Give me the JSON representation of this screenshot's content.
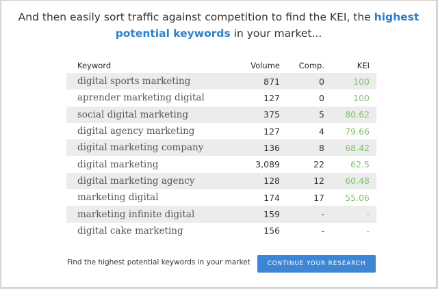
{
  "headline": {
    "before": "And then easily sort traffic against competition to find the KEI, the ",
    "highlight": "highest potential keywords",
    "after": " in your market..."
  },
  "table": {
    "headers": {
      "keyword": "Keyword",
      "volume": "Volume",
      "comp": "Comp.",
      "kei": "KEI"
    },
    "rows": [
      {
        "keyword": "digital sports marketing",
        "volume": "871",
        "comp": "0",
        "kei": "100"
      },
      {
        "keyword": "aprender marketing digital",
        "volume": "127",
        "comp": "0",
        "kei": "100"
      },
      {
        "keyword": "social digital marketing",
        "volume": "375",
        "comp": "5",
        "kei": "80.62"
      },
      {
        "keyword": "digital agency marketing",
        "volume": "127",
        "comp": "4",
        "kei": "79.66"
      },
      {
        "keyword": "digital marketing company",
        "volume": "136",
        "comp": "8",
        "kei": "68.42"
      },
      {
        "keyword": "digital marketing",
        "volume": "3,089",
        "comp": "22",
        "kei": "62.5"
      },
      {
        "keyword": "digital marketing agency",
        "volume": "128",
        "comp": "12",
        "kei": "60.48"
      },
      {
        "keyword": "marketing digital",
        "volume": "174",
        "comp": "17",
        "kei": "55.06"
      },
      {
        "keyword": "marketing infinite digital",
        "volume": "159",
        "comp": "-",
        "kei": "-"
      },
      {
        "keyword": "digital cake marketing",
        "volume": "156",
        "comp": "-",
        "kei": "-"
      }
    ]
  },
  "footer": {
    "text": "Find the highest potential keywords in your market",
    "button_label": "CONTINUE YOUR RESEARCH"
  },
  "colors": {
    "accent": "#2f7fc4",
    "button": "#3d86d6",
    "kei_green": "#7cc36b",
    "row_shade": "#ececec"
  }
}
